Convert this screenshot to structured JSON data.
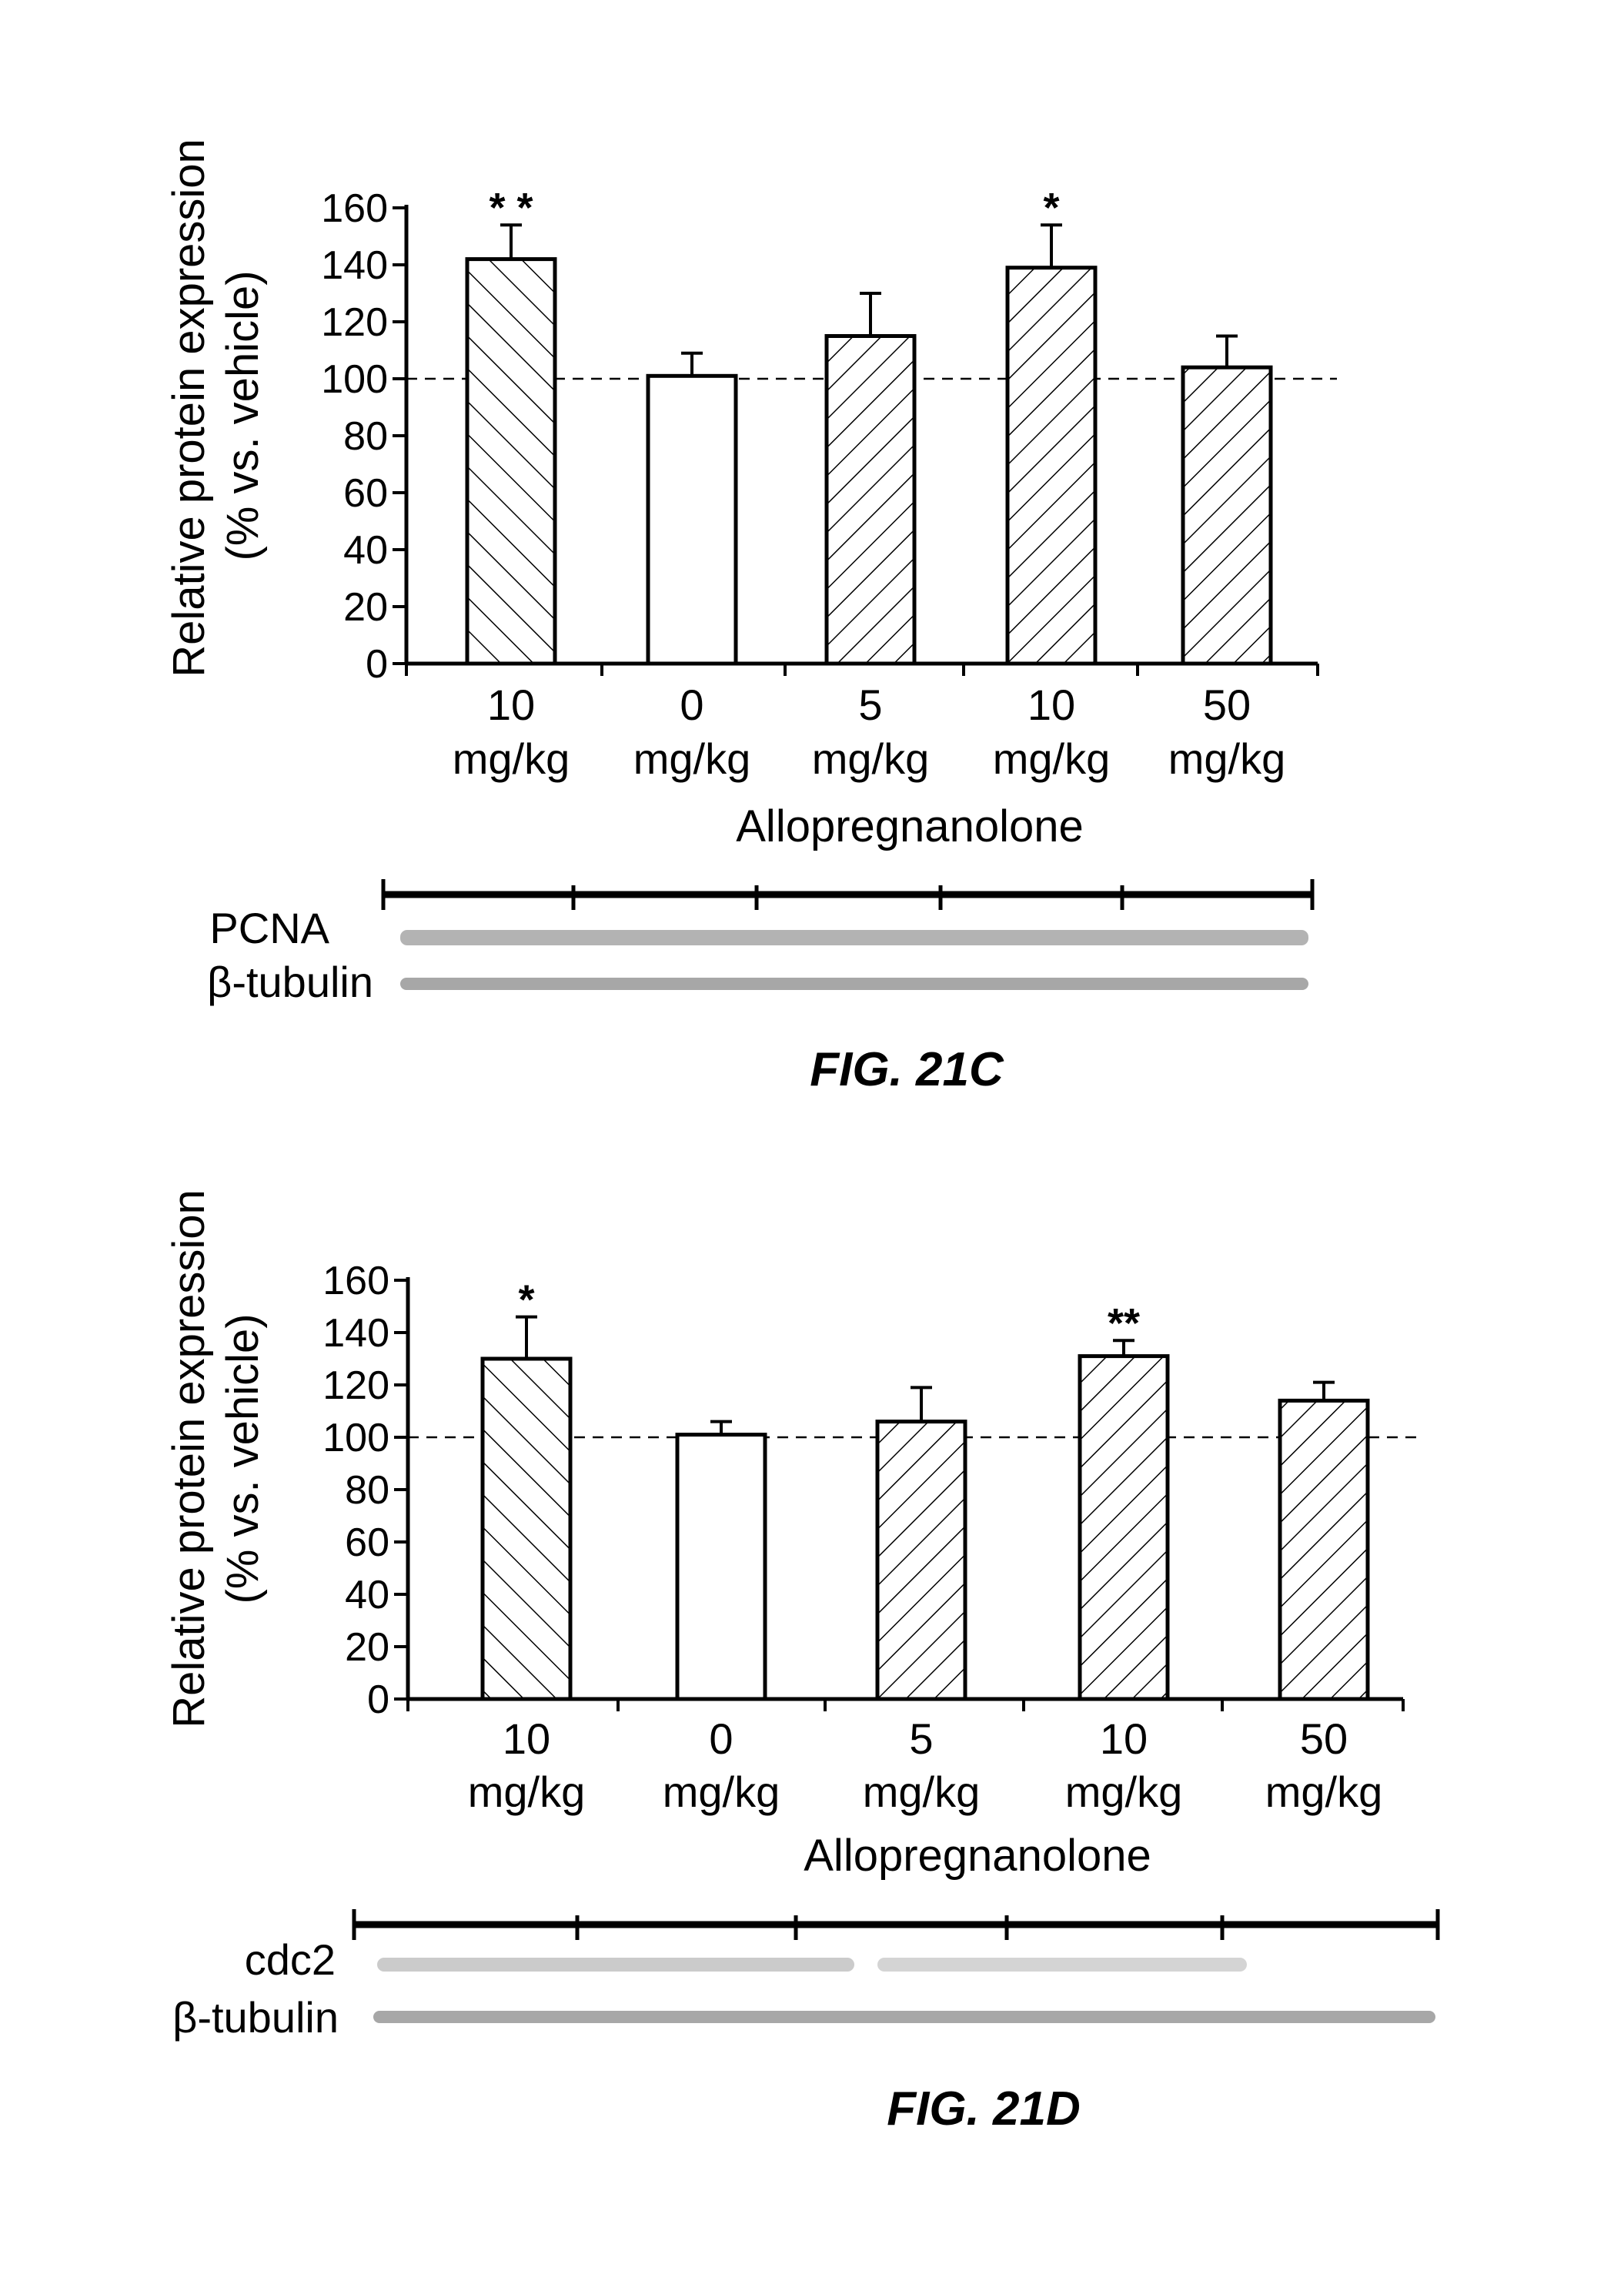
{
  "chart_data": [
    {
      "type": "bar",
      "figure_label": "FIG. 21C",
      "ylabel_line1": "Relative protein expression",
      "ylabel_line2": "(% vs. vehicle)",
      "xlabel": "Allopregnanolone",
      "ylim": [
        0,
        160
      ],
      "yticks": [
        0,
        20,
        40,
        60,
        80,
        100,
        120,
        140,
        160
      ],
      "reference_line": 100,
      "categories": [
        {
          "dose": "10",
          "unit": "mg/kg"
        },
        {
          "dose": "0",
          "unit": "mg/kg"
        },
        {
          "dose": "5",
          "unit": "mg/kg"
        },
        {
          "dose": "10",
          "unit": "mg/kg"
        },
        {
          "dose": "50",
          "unit": "mg/kg"
        }
      ],
      "values": [
        142,
        101,
        115,
        139,
        104
      ],
      "errors": [
        12,
        8,
        15,
        15,
        11
      ],
      "significance": [
        "* *",
        "",
        "",
        "*",
        ""
      ],
      "patterns": [
        "back-hatch",
        "none",
        "forward-hatch",
        "forward-hatch",
        "forward-hatch"
      ],
      "blot_labels": [
        "PCNA",
        "β-tubulin"
      ]
    },
    {
      "type": "bar",
      "figure_label": "FIG. 21D",
      "ylabel_line1": "Relative protein expression",
      "ylabel_line2": "(% vs. vehicle)",
      "xlabel": "Allopregnanolone",
      "ylim": [
        0,
        160
      ],
      "yticks": [
        0,
        20,
        40,
        60,
        80,
        100,
        120,
        140,
        160
      ],
      "reference_line": 100,
      "categories": [
        {
          "dose": "10",
          "unit": "mg/kg"
        },
        {
          "dose": "0",
          "unit": "mg/kg"
        },
        {
          "dose": "5",
          "unit": "mg/kg"
        },
        {
          "dose": "10",
          "unit": "mg/kg"
        },
        {
          "dose": "50",
          "unit": "mg/kg"
        }
      ],
      "values": [
        130,
        101,
        106,
        131,
        114
      ],
      "errors": [
        16,
        5,
        13,
        6,
        7
      ],
      "significance": [
        "*",
        "",
        "",
        "**",
        ""
      ],
      "patterns": [
        "back-hatch",
        "none",
        "forward-hatch",
        "forward-hatch",
        "forward-hatch"
      ],
      "blot_labels": [
        "cdc2",
        "β-tubulin"
      ]
    }
  ]
}
